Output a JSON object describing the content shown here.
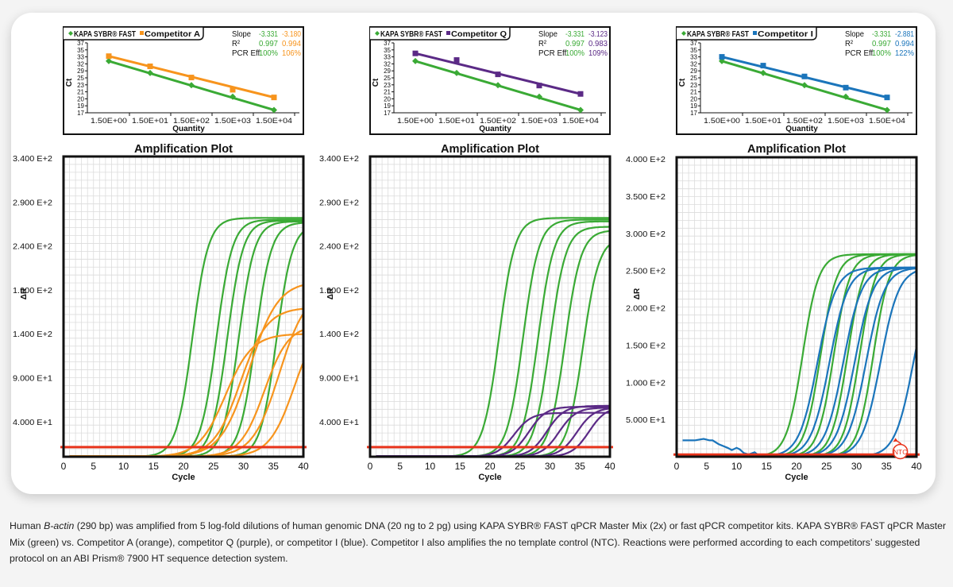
{
  "caption": {
    "part1": "Human ",
    "gene": "B-actin",
    "part2": " (290 bp) was amplified from 5 log-fold dilutions of human genomic DNA (20 ng to 2 pg) using KAPA SYBR® FAST qPCR Master Mix (2x) or fast qPCR competitor kits.  KAPA SYBR® FAST qPCR Master Mix (green) vs. Competitor A (orange), competitor Q (purple), or competitor I (blue).  Competitor I also amplifies the no template control (NTC).  Reactions were performed according to each competitors’ suggested protocol on an ABI Prism® 7900 HT sequence detection system."
  },
  "chart_data": [
    {
      "type": "line",
      "panel": "competitor-a",
      "kind": "standard-curve",
      "title": "",
      "xlabel": "Quantity",
      "ylabel": "Ct",
      "x_categories": [
        "1.50E+00",
        "1.50E+01",
        "1.50E+02",
        "1.50E+03",
        "1.50E+04"
      ],
      "y_ticks": [
        "37",
        "35",
        "33",
        "32",
        "29",
        "25",
        "23",
        "21",
        "20",
        "19",
        "17"
      ],
      "ylim": [
        17,
        37
      ],
      "legend": [
        "KAPA SYBR® FAST",
        "Competitor A"
      ],
      "stats": {
        "labels": [
          "Slope",
          "R²",
          "PCR Eff."
        ],
        "kapa": [
          "-3.331",
          "0.997",
          "100%"
        ],
        "competitor": [
          "-3.180",
          "0.994",
          "106%"
        ]
      },
      "series": [
        {
          "name": "KAPA SYBR® FAST",
          "color": "#3aaa35",
          "marker": "diamond",
          "values": [
            31.8,
            28.4,
            24.9,
            21.6,
            17.8
          ]
        },
        {
          "name": "Competitor A",
          "color": "#f7941d",
          "marker": "square",
          "values": [
            33.2,
            30.3,
            27.1,
            23.6,
            21.4
          ]
        }
      ]
    },
    {
      "type": "line",
      "panel": "competitor-q",
      "kind": "standard-curve",
      "title": "",
      "xlabel": "Quantity",
      "ylabel": "Ct",
      "x_categories": [
        "1.50E+00",
        "1.50E+01",
        "1.50E+02",
        "1.50E+03",
        "1.50E+04"
      ],
      "y_ticks": [
        "37",
        "35",
        "33",
        "32",
        "29",
        "25",
        "23",
        "21",
        "20",
        "19",
        "17"
      ],
      "ylim": [
        17,
        37
      ],
      "legend": [
        "KAPA SYBR® FAST",
        "Competitor Q"
      ],
      "stats": {
        "labels": [
          "Slope",
          "R²",
          "PCR Eff."
        ],
        "kapa": [
          "-3.331",
          "0.997",
          "100%"
        ],
        "competitor": [
          "-3.123",
          "0.983",
          "109%"
        ]
      },
      "series": [
        {
          "name": "KAPA SYBR® FAST",
          "color": "#3aaa35",
          "marker": "diamond",
          "values": [
            31.8,
            28.4,
            24.9,
            21.6,
            17.8
          ]
        },
        {
          "name": "Competitor Q",
          "color": "#5b2a86",
          "marker": "square",
          "values": [
            34.0,
            32.1,
            28.0,
            24.8,
            22.4
          ]
        }
      ]
    },
    {
      "type": "line",
      "panel": "competitor-i",
      "kind": "standard-curve",
      "title": "",
      "xlabel": "Quantity",
      "ylabel": "Ct",
      "x_categories": [
        "1.50E+00",
        "1.50E+01",
        "1.50E+02",
        "1.50E+03",
        "1.50E+04"
      ],
      "y_ticks": [
        "37",
        "35",
        "33",
        "32",
        "29",
        "25",
        "23",
        "21",
        "20",
        "19",
        "17"
      ],
      "ylim": [
        17,
        37
      ],
      "legend": [
        "KAPA SYBR® FAST",
        "Competitor I"
      ],
      "stats": {
        "labels": [
          "Slope",
          "R²",
          "PCR Eff."
        ],
        "kapa": [
          "-3.331",
          "0.997",
          "100%"
        ],
        "competitor": [
          "-2.881",
          "0.994",
          "122%"
        ]
      },
      "series": [
        {
          "name": "KAPA SYBR® FAST",
          "color": "#3aaa35",
          "marker": "diamond",
          "values": [
            31.8,
            28.4,
            24.9,
            21.6,
            17.8
          ]
        },
        {
          "name": "Competitor I",
          "color": "#1b75bb",
          "marker": "square",
          "values": [
            33.0,
            30.5,
            27.4,
            24.2,
            21.4
          ]
        }
      ]
    },
    {
      "type": "line",
      "panel": "competitor-a",
      "kind": "amplification",
      "title": "Amplification Plot",
      "xlabel": "Cycle",
      "ylabel": "ΔR",
      "xlim": [
        0,
        40
      ],
      "x_ticks": [
        "0",
        "5",
        "10",
        "15",
        "20",
        "25",
        "30",
        "35",
        "40"
      ],
      "ylim": [
        0,
        360
      ],
      "y_ticks": [
        {
          "v": 40,
          "label": "4.000 E+1"
        },
        {
          "v": 90,
          "label": "9.000 E+1"
        },
        {
          "v": 140,
          "label": "1.400 E+2"
        },
        {
          "v": 190,
          "label": "1.900 E+2"
        },
        {
          "v": 240,
          "label": "2.400 E+2"
        },
        {
          "v": 290,
          "label": "2.900 E+2"
        },
        {
          "v": 340,
          "label": "3.400 E+2"
        }
      ],
      "grid": true,
      "threshold": 11,
      "threshold_color": "#e8341c",
      "series": [
        {
          "name": "KAPA SYBR® FAST",
          "color": "#3aaa35",
          "curves": [
            {
              "mid": 21.5,
              "max": 272,
              "k": 0.75
            },
            {
              "mid": 25.5,
              "max": 270,
              "k": 0.75
            },
            {
              "mid": 27.3,
              "max": 269,
              "k": 0.75
            },
            {
              "mid": 29.2,
              "max": 268,
              "k": 0.75
            },
            {
              "mid": 32.0,
              "max": 267,
              "k": 0.75
            },
            {
              "mid": 35.5,
              "max": 265,
              "k": 0.75
            }
          ]
        },
        {
          "name": "Competitor A",
          "color": "#f7941d",
          "curves": [
            {
              "mid": 27.0,
              "max": 140,
              "k": 0.45
            },
            {
              "mid": 29.5,
              "max": 170,
              "k": 0.45
            },
            {
              "mid": 31.0,
              "max": 200,
              "k": 0.42
            },
            {
              "mid": 33.5,
              "max": 150,
              "k": 0.5
            },
            {
              "mid": 36.0,
              "max": 190,
              "k": 0.45
            },
            {
              "mid": 38.5,
              "max": 160,
              "k": 0.48
            }
          ]
        }
      ]
    },
    {
      "type": "line",
      "panel": "competitor-q",
      "kind": "amplification",
      "title": "Amplification Plot",
      "xlabel": "Cycle",
      "ylabel": "ΔR",
      "xlim": [
        0,
        40
      ],
      "x_ticks": [
        "0",
        "5",
        "10",
        "15",
        "20",
        "25",
        "30",
        "35",
        "40"
      ],
      "ylim": [
        0,
        360
      ],
      "y_ticks": [
        {
          "v": 40,
          "label": "4.000 E+1"
        },
        {
          "v": 90,
          "label": "9.000 E+1"
        },
        {
          "v": 140,
          "label": "1.400 E+2"
        },
        {
          "v": 190,
          "label": "1.900 E+2"
        },
        {
          "v": 240,
          "label": "2.400 E+2"
        },
        {
          "v": 290,
          "label": "2.900 E+2"
        },
        {
          "v": 340,
          "label": "3.400 E+2"
        }
      ],
      "grid": true,
      "threshold": 11,
      "threshold_color": "#e8341c",
      "series": [
        {
          "name": "KAPA SYBR® FAST",
          "color": "#3aaa35",
          "curves": [
            {
              "mid": 21.5,
              "max": 272,
              "k": 0.75
            },
            {
              "mid": 25.5,
              "max": 270,
              "k": 0.75
            },
            {
              "mid": 28.0,
              "max": 268,
              "k": 0.75
            },
            {
              "mid": 30.0,
              "max": 262,
              "k": 0.75
            },
            {
              "mid": 32.5,
              "max": 258,
              "k": 0.75
            },
            {
              "mid": 35.5,
              "max": 250,
              "k": 0.75
            }
          ]
        },
        {
          "name": "Competitor Q",
          "color": "#5b2a86",
          "curves": [
            {
              "mid": 24.0,
              "max": 50,
              "k": 0.7
            },
            {
              "mid": 26.5,
              "max": 57,
              "k": 0.7
            },
            {
              "mid": 29.5,
              "max": 58,
              "k": 0.7
            },
            {
              "mid": 31.5,
              "max": 56,
              "k": 0.7
            },
            {
              "mid": 34.5,
              "max": 56,
              "k": 0.7
            },
            {
              "mid": 36.5,
              "max": 57,
              "k": 0.7
            }
          ]
        }
      ]
    },
    {
      "type": "line",
      "panel": "competitor-i",
      "kind": "amplification",
      "title": "Amplification Plot",
      "xlabel": "Cycle",
      "ylabel": "ΔR",
      "xlim": [
        0,
        40
      ],
      "x_ticks": [
        "0",
        "5",
        "10",
        "15",
        "20",
        "25",
        "30",
        "35",
        "40"
      ],
      "ylim": [
        0,
        400
      ],
      "y_ticks": [
        {
          "v": 50,
          "label": "5.000 E+1"
        },
        {
          "v": 100,
          "label": "1.000 E+2"
        },
        {
          "v": 150,
          "label": "1.500 E+2"
        },
        {
          "v": 200,
          "label": "2.000 E+2"
        },
        {
          "v": 250,
          "label": "2.500 E+2"
        },
        {
          "v": 300,
          "label": "3.000 E+2"
        },
        {
          "v": 350,
          "label": "3.500 E+2"
        },
        {
          "v": 400,
          "label": "4.000 E+2"
        }
      ],
      "grid": true,
      "threshold": 3,
      "threshold_color": "#e8341c",
      "annotation": "NTC",
      "series": [
        {
          "name": "KAPA SYBR® FAST",
          "color": "#3aaa35",
          "curves": [
            {
              "mid": 21.0,
              "max": 272,
              "k": 0.75
            },
            {
              "mid": 24.0,
              "max": 272,
              "k": 0.75
            },
            {
              "mid": 26.2,
              "max": 272,
              "k": 0.75
            },
            {
              "mid": 28.5,
              "max": 272,
              "k": 0.75
            },
            {
              "mid": 30.5,
              "max": 272,
              "k": 0.75
            },
            {
              "mid": 32.8,
              "max": 272,
              "k": 0.75
            }
          ]
        },
        {
          "name": "Competitor I",
          "color": "#1b75bb",
          "curves": [
            {
              "mid": 23.5,
              "max": 254,
              "k": 0.65
            },
            {
              "mid": 25.5,
              "max": 254,
              "k": 0.65
            },
            {
              "mid": 27.8,
              "max": 254,
              "k": 0.65
            },
            {
              "mid": 29.7,
              "max": 254,
              "k": 0.65
            },
            {
              "mid": 31.6,
              "max": 254,
              "k": 0.65
            },
            {
              "mid": 34.0,
              "max": 254,
              "k": 0.65
            },
            {
              "mid": 39.5,
              "max": 254,
              "k": 0.65
            }
          ]
        },
        {
          "name": "Competitor I NTC",
          "color": "#1b75bb",
          "points": [
            [
              1,
              22
            ],
            [
              3,
              22
            ],
            [
              4.5,
              24
            ],
            [
              5.5,
              22
            ],
            [
              6,
              22
            ],
            [
              7,
              17
            ],
            [
              8.5,
              12
            ],
            [
              9.2,
              9
            ],
            [
              10,
              12
            ],
            [
              10.5,
              10
            ],
            [
              11.2,
              5
            ],
            [
              12,
              3
            ],
            [
              13,
              6
            ],
            [
              13.5,
              3
            ],
            [
              15,
              2
            ]
          ]
        }
      ]
    }
  ]
}
